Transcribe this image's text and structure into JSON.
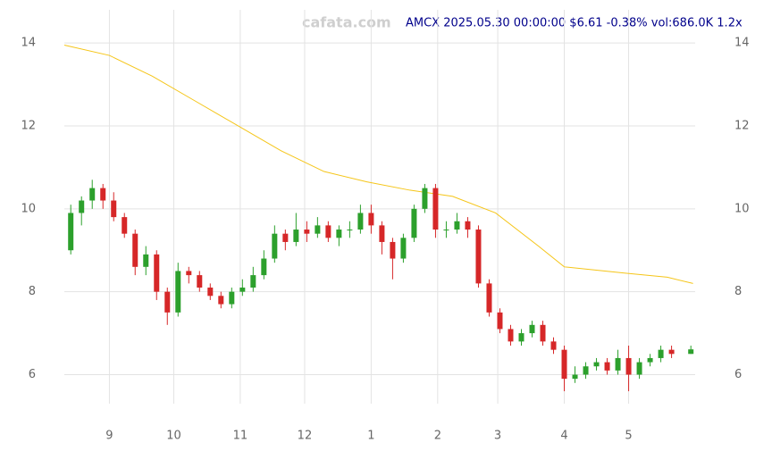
{
  "chart_data": {
    "type": "candlestick",
    "watermark": "cafata.com",
    "title": "AMCX 2025.05.30 00:00:00 $6.61 -0.38% vol:686.0K 1.2x",
    "x": [
      -18,
      -13,
      -8,
      -3,
      2,
      7,
      12,
      17,
      22,
      27,
      32,
      37,
      42,
      47,
      52,
      57,
      62,
      67,
      72,
      77,
      82,
      87,
      92,
      97,
      102,
      107,
      112,
      117,
      122,
      127,
      132,
      137,
      142,
      147,
      152,
      157,
      162,
      167,
      172,
      177,
      182,
      187,
      192,
      197,
      202,
      207,
      212,
      217,
      222,
      227,
      232,
      237,
      242,
      247,
      252,
      257,
      262,
      271
    ],
    "open": [
      9.0,
      9.9,
      10.2,
      10.5,
      10.2,
      9.8,
      9.4,
      8.6,
      8.9,
      8.0,
      7.5,
      8.5,
      8.4,
      8.1,
      7.9,
      7.7,
      8.0,
      8.1,
      8.4,
      8.8,
      9.4,
      9.2,
      9.5,
      9.4,
      9.6,
      9.3,
      9.5,
      9.5,
      9.9,
      9.6,
      9.2,
      8.8,
      9.3,
      10.0,
      10.5,
      9.5,
      9.5,
      9.7,
      9.5,
      8.2,
      7.5,
      7.1,
      6.8,
      7.0,
      7.2,
      6.8,
      6.6,
      5.9,
      6.0,
      6.2,
      6.3,
      6.1,
      6.4,
      6.0,
      6.3,
      6.4,
      6.6,
      6.5
    ],
    "high": [
      10.1,
      10.3,
      10.7,
      10.6,
      10.4,
      9.9,
      9.5,
      9.1,
      9.0,
      8.1,
      8.7,
      8.6,
      8.5,
      8.2,
      8.0,
      8.1,
      8.3,
      8.6,
      9.0,
      9.6,
      9.5,
      9.9,
      9.7,
      9.8,
      9.7,
      9.6,
      9.7,
      10.1,
      10.1,
      9.7,
      9.3,
      9.4,
      10.1,
      10.6,
      10.6,
      9.7,
      9.9,
      9.8,
      9.6,
      8.3,
      7.6,
      7.2,
      7.1,
      7.3,
      7.3,
      6.9,
      6.7,
      6.2,
      6.3,
      6.4,
      6.4,
      6.6,
      6.7,
      6.4,
      6.5,
      6.7,
      6.7,
      6.7
    ],
    "low": [
      8.9,
      9.6,
      10.0,
      10.0,
      9.7,
      9.3,
      8.4,
      8.4,
      7.8,
      7.2,
      7.4,
      8.2,
      8.0,
      7.8,
      7.6,
      7.6,
      7.9,
      8.0,
      8.3,
      8.7,
      9.0,
      9.1,
      9.2,
      9.3,
      9.2,
      9.1,
      9.3,
      9.4,
      9.4,
      8.9,
      8.3,
      8.7,
      9.2,
      9.9,
      9.3,
      9.3,
      9.4,
      9.3,
      8.1,
      7.4,
      7.0,
      6.7,
      6.7,
      6.9,
      6.7,
      6.5,
      5.6,
      5.8,
      5.9,
      6.1,
      6.0,
      6.0,
      5.6,
      5.9,
      6.2,
      6.3,
      6.4,
      6.5
    ],
    "close": [
      9.9,
      10.2,
      10.5,
      10.2,
      9.8,
      9.4,
      8.6,
      8.9,
      8.0,
      7.5,
      8.5,
      8.4,
      8.1,
      7.9,
      7.7,
      8.0,
      8.1,
      8.4,
      8.8,
      9.4,
      9.2,
      9.5,
      9.4,
      9.6,
      9.3,
      9.5,
      9.5,
      9.9,
      9.6,
      9.2,
      8.8,
      9.3,
      10.0,
      10.5,
      9.5,
      9.5,
      9.7,
      9.5,
      8.2,
      7.5,
      7.1,
      6.8,
      7.0,
      7.2,
      6.8,
      6.6,
      5.9,
      6.0,
      6.2,
      6.3,
      6.1,
      6.4,
      6.0,
      6.3,
      6.4,
      6.6,
      6.5,
      6.61
    ],
    "up_color": "#2ca02c",
    "down_color": "#d62728",
    "overlay": {
      "color": "#f5c518",
      "x": [
        -21,
        0,
        20,
        40,
        60,
        80,
        100,
        120,
        140,
        160,
        180,
        200,
        212,
        240,
        260,
        272
      ],
      "values": [
        13.95,
        13.7,
        13.2,
        12.6,
        12.0,
        11.4,
        10.9,
        10.65,
        10.45,
        10.3,
        9.9,
        9.1,
        8.6,
        8.45,
        8.35,
        8.2
      ]
    },
    "xlim": [
      -21,
      273
    ],
    "xticks": [
      {
        "value": 0,
        "label": "9"
      },
      {
        "value": 30,
        "label": "10"
      },
      {
        "value": 61,
        "label": "11"
      },
      {
        "value": 91,
        "label": "12"
      },
      {
        "value": 122,
        "label": "1"
      },
      {
        "value": 153,
        "label": "2"
      },
      {
        "value": 181,
        "label": "3"
      },
      {
        "value": 212,
        "label": "4"
      },
      {
        "value": 242,
        "label": "5"
      }
    ],
    "ylim": [
      5.3,
      14.8
    ],
    "yticks": [
      6,
      8,
      10,
      12,
      14
    ],
    "grid": true
  }
}
